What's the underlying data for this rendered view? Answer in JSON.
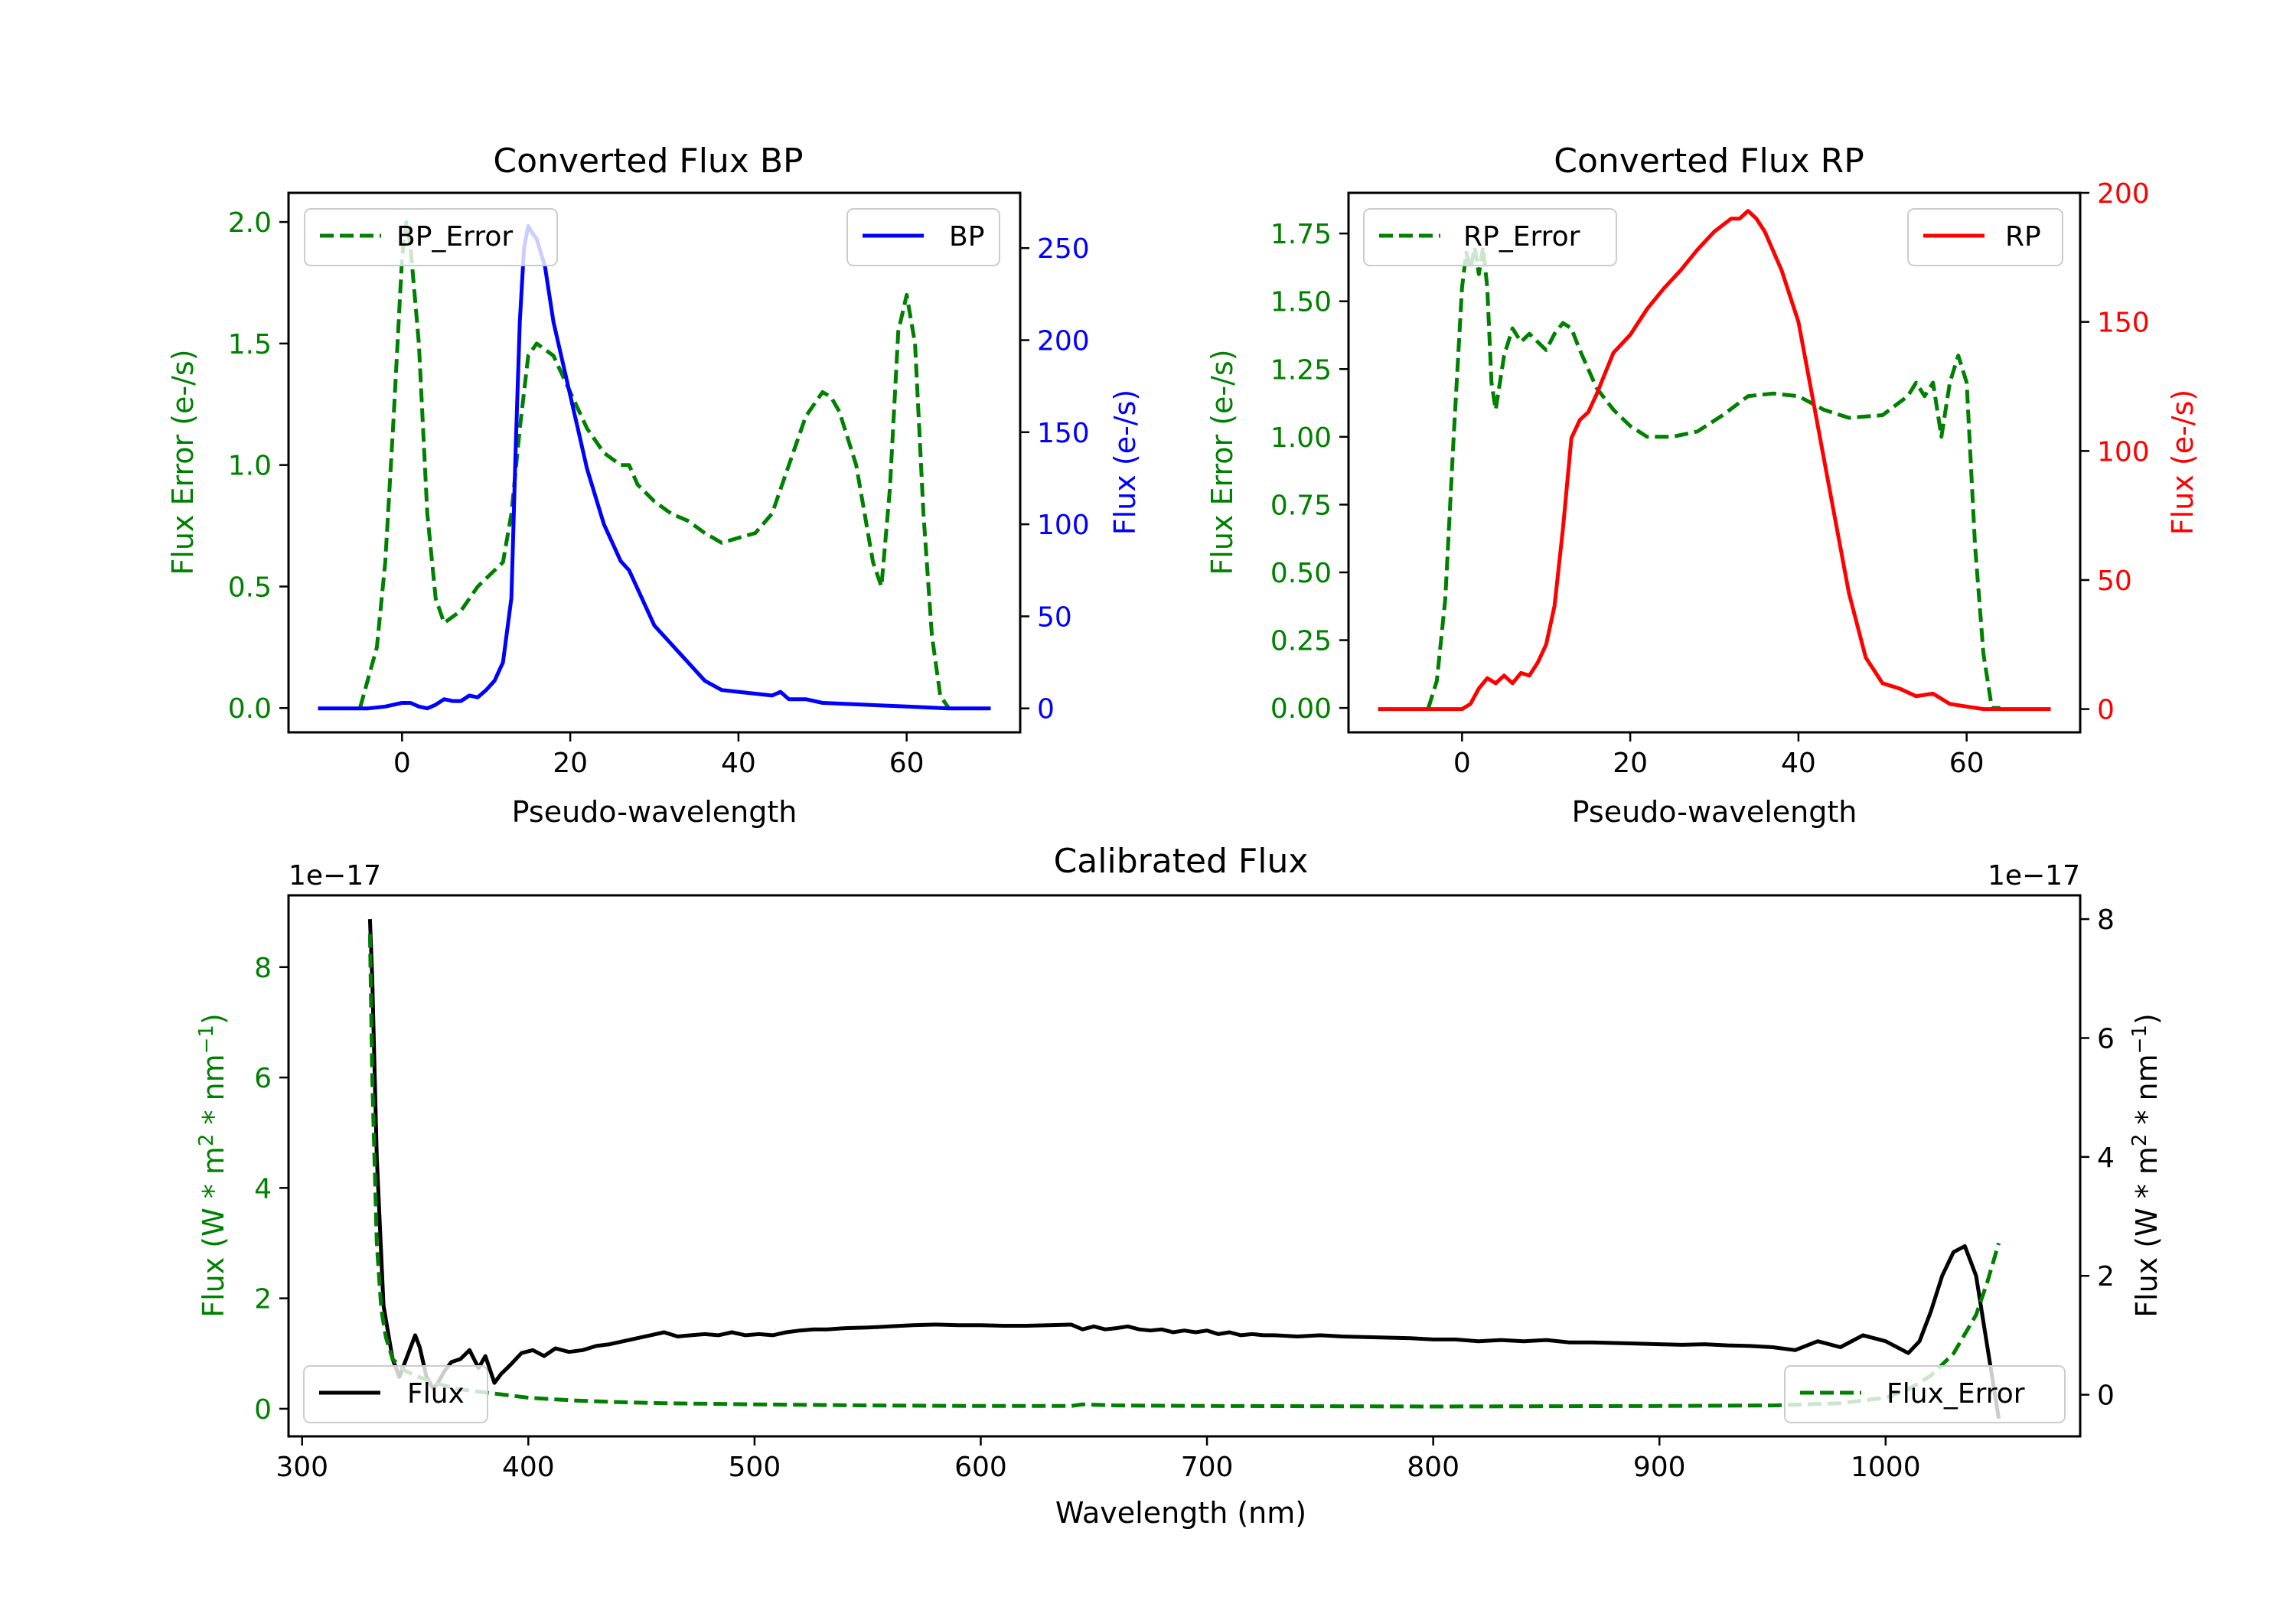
{
  "colors": {
    "bp": "#0000ff",
    "rp": "#ff0000",
    "error": "#008000",
    "flux": "#000000"
  },
  "chart_data": [
    {
      "id": "bp",
      "type": "line",
      "title": "Converted Flux BP",
      "xlabel": "Pseudo-wavelength",
      "ylabel_left": "Flux Error (e-/s)",
      "ylabel_right": "Flux (e-/s)",
      "xlim": [
        -13.5,
        73.5
      ],
      "ylim_left": [
        -0.1,
        2.12
      ],
      "ylim_right": [
        -13,
        280
      ],
      "xticks": [
        0,
        20,
        40,
        60
      ],
      "yticks_left": [
        "0.0",
        "0.5",
        "1.0",
        "1.5",
        "2.0"
      ],
      "yticks_right": [
        "0",
        "50",
        "100",
        "150",
        "200",
        "250"
      ],
      "legend_left": "BP_Error",
      "legend_right": "BP",
      "series": [
        {
          "name": "BP_Error",
          "axis": "left",
          "style": "dashed",
          "x": [
            -5,
            -3,
            -2,
            -1,
            0,
            0.5,
            1,
            2,
            3,
            4,
            5,
            7,
            9,
            12,
            13,
            14,
            15,
            16,
            18,
            20,
            22,
            24,
            26,
            27,
            28,
            30,
            32,
            34,
            36,
            38,
            40,
            42,
            44,
            46,
            48,
            50,
            51,
            52,
            54,
            56,
            57,
            58,
            59,
            60,
            61,
            62,
            63,
            64,
            65
          ],
          "values": [
            0.0,
            0.25,
            0.6,
            1.2,
            1.85,
            2.0,
            1.9,
            1.5,
            0.8,
            0.45,
            0.35,
            0.4,
            0.5,
            0.6,
            0.8,
            1.15,
            1.45,
            1.5,
            1.45,
            1.3,
            1.15,
            1.05,
            1.0,
            1.0,
            0.92,
            0.85,
            0.8,
            0.77,
            0.72,
            0.68,
            0.7,
            0.72,
            0.8,
            1.0,
            1.2,
            1.3,
            1.28,
            1.22,
            1.0,
            0.6,
            0.5,
            0.9,
            1.55,
            1.7,
            1.5,
            0.8,
            0.3,
            0.05,
            0.0
          ]
        },
        {
          "name": "BP",
          "axis": "right",
          "style": "solid",
          "x": [
            -10,
            -4,
            -2,
            0,
            1,
            2,
            3,
            4,
            5,
            6,
            7,
            8,
            9,
            10,
            11,
            12,
            13,
            13.5,
            14,
            14.5,
            15,
            15.5,
            16,
            17,
            18,
            20,
            22,
            24,
            26,
            27,
            28,
            30,
            32,
            34,
            36,
            38,
            40,
            42,
            44,
            45,
            46,
            48,
            50,
            55,
            60,
            65,
            70
          ],
          "values": [
            0,
            0,
            1,
            3,
            3,
            1,
            0,
            2,
            5,
            4,
            4,
            7,
            6,
            10,
            15,
            25,
            60,
            140,
            210,
            250,
            262,
            258,
            255,
            240,
            210,
            170,
            130,
            100,
            80,
            75,
            65,
            45,
            35,
            25,
            15,
            10,
            9,
            8,
            7,
            9,
            5,
            5,
            3,
            2,
            1,
            0,
            0
          ]
        }
      ]
    },
    {
      "id": "rp",
      "type": "line",
      "title": "Converted Flux RP",
      "xlabel": "Pseudo-wavelength",
      "ylabel_left": "Flux Error (e-/s)",
      "ylabel_right": "Flux (e-/s)",
      "xlim": [
        -13.5,
        73.5
      ],
      "ylim_left": [
        -0.09,
        1.9
      ],
      "ylim_right": [
        -9,
        200
      ],
      "xticks": [
        0,
        20,
        40,
        60
      ],
      "yticks_left": [
        "0.00",
        "0.25",
        "0.50",
        "0.75",
        "1.00",
        "1.25",
        "1.50",
        "1.75"
      ],
      "yticks_right": [
        "0",
        "50",
        "100",
        "150",
        "200"
      ],
      "legend_left": "RP_Error",
      "legend_right": "RP",
      "series": [
        {
          "name": "RP_Error",
          "axis": "left",
          "style": "dashed",
          "x": [
            -4,
            -3,
            -2,
            -1,
            0,
            0.5,
            1,
            1.5,
            2,
            2.5,
            3,
            3.5,
            4,
            5,
            6,
            7,
            8,
            9,
            10,
            11,
            12,
            13,
            14,
            15,
            16,
            18,
            20,
            22,
            25,
            28,
            31,
            34,
            37,
            40,
            43,
            46,
            50,
            53,
            54,
            55,
            56,
            57,
            58,
            59,
            60,
            61,
            62,
            63,
            64
          ],
          "values": [
            0.0,
            0.1,
            0.4,
            1.0,
            1.55,
            1.68,
            1.62,
            1.7,
            1.6,
            1.7,
            1.55,
            1.2,
            1.1,
            1.3,
            1.4,
            1.35,
            1.38,
            1.35,
            1.32,
            1.38,
            1.42,
            1.4,
            1.32,
            1.25,
            1.18,
            1.1,
            1.04,
            1.0,
            1.0,
            1.02,
            1.08,
            1.15,
            1.16,
            1.15,
            1.1,
            1.07,
            1.08,
            1.15,
            1.2,
            1.15,
            1.2,
            1.0,
            1.2,
            1.3,
            1.2,
            0.6,
            0.2,
            0.0,
            0.0
          ]
        },
        {
          "name": "RP",
          "axis": "right",
          "style": "solid",
          "x": [
            -10,
            -2,
            0,
            1,
            2,
            3,
            4,
            5,
            6,
            7,
            8,
            9,
            10,
            11,
            12,
            13,
            14,
            15,
            16,
            17,
            18,
            20,
            22,
            24,
            26,
            28,
            30,
            32,
            33,
            34,
            35,
            36,
            38,
            40,
            42,
            44,
            46,
            48,
            50,
            52,
            54,
            56,
            57,
            58,
            60,
            62,
            65,
            70
          ],
          "values": [
            0,
            0,
            0,
            2,
            8,
            12,
            10,
            13,
            10,
            14,
            13,
            18,
            25,
            40,
            70,
            105,
            112,
            115,
            122,
            130,
            138,
            145,
            155,
            163,
            170,
            178,
            185,
            190,
            190,
            193,
            190,
            185,
            170,
            150,
            115,
            80,
            45,
            20,
            10,
            8,
            5,
            6,
            4,
            2,
            1,
            0,
            0,
            0
          ]
        }
      ]
    },
    {
      "id": "calibrated",
      "type": "line",
      "title": "Calibrated Flux",
      "xlabel": "Wavelength (nm)",
      "ylabel_left": "Flux (W * m2 * nm-1)",
      "ylabel_right": "Flux (W * m2 * nm-1)",
      "offset_left": "1e−17",
      "offset_right": "1e−17",
      "xlim": [
        294,
        1086
      ],
      "ylim_left": [
        -0.5,
        9.3
      ],
      "ylim_right": [
        -0.7,
        8.4
      ],
      "xticks": [
        300,
        400,
        500,
        600,
        700,
        800,
        900,
        1000
      ],
      "yticks_left": [
        "0",
        "2",
        "4",
        "6",
        "8"
      ],
      "yticks_right": [
        "0",
        "2",
        "4",
        "6",
        "8"
      ],
      "legend_left": "Flux",
      "legend_right": "Flux_Error",
      "series": [
        {
          "name": "Flux",
          "axis": "right",
          "style": "solid",
          "x": [
            330,
            331,
            333,
            336,
            340,
            343,
            345,
            347,
            350,
            352,
            355,
            358,
            360,
            363,
            366,
            370,
            374,
            378,
            381,
            385,
            388,
            392,
            397,
            402,
            407,
            412,
            418,
            424,
            430,
            436,
            442,
            448,
            454,
            460,
            466,
            472,
            478,
            484,
            490,
            496,
            502,
            508,
            514,
            520,
            526,
            532,
            540,
            550,
            560,
            570,
            580,
            590,
            600,
            610,
            620,
            630,
            640,
            645,
            650,
            655,
            660,
            665,
            670,
            675,
            680,
            685,
            690,
            695,
            700,
            705,
            710,
            715,
            720,
            725,
            730,
            740,
            750,
            760,
            770,
            780,
            790,
            800,
            810,
            820,
            830,
            840,
            850,
            860,
            870,
            880,
            890,
            900,
            910,
            920,
            930,
            940,
            950,
            960,
            970,
            980,
            990,
            1000,
            1010,
            1015,
            1020,
            1025,
            1030,
            1035,
            1040,
            1045,
            1050
          ],
          "values": [
            8.0,
            7.0,
            4.0,
            1.5,
            0.6,
            0.3,
            0.5,
            0.7,
            1.0,
            0.8,
            0.3,
            0.1,
            0.2,
            0.4,
            0.55,
            0.6,
            0.75,
            0.45,
            0.65,
            0.2,
            0.35,
            0.5,
            0.7,
            0.75,
            0.65,
            0.78,
            0.72,
            0.75,
            0.82,
            0.85,
            0.9,
            0.95,
            1.0,
            1.05,
            0.98,
            1.0,
            1.02,
            1.0,
            1.05,
            1.0,
            1.02,
            1.0,
            1.05,
            1.08,
            1.1,
            1.1,
            1.12,
            1.13,
            1.15,
            1.17,
            1.18,
            1.17,
            1.17,
            1.16,
            1.16,
            1.17,
            1.18,
            1.1,
            1.15,
            1.1,
            1.12,
            1.15,
            1.1,
            1.08,
            1.1,
            1.05,
            1.08,
            1.05,
            1.08,
            1.02,
            1.05,
            1.0,
            1.02,
            1.0,
            1.0,
            0.98,
            1.0,
            0.98,
            0.97,
            0.96,
            0.95,
            0.93,
            0.93,
            0.9,
            0.92,
            0.9,
            0.92,
            0.88,
            0.88,
            0.87,
            0.86,
            0.85,
            0.84,
            0.85,
            0.83,
            0.82,
            0.8,
            0.75,
            0.9,
            0.8,
            1.0,
            0.9,
            0.7,
            0.9,
            1.4,
            2.0,
            2.4,
            2.5,
            2.0,
            0.8,
            -0.4
          ]
        },
        {
          "name": "Flux_Error",
          "axis": "left",
          "style": "dashed",
          "x": [
            330,
            331,
            333,
            335,
            337,
            340,
            345,
            350,
            360,
            370,
            380,
            390,
            400,
            420,
            440,
            460,
            500,
            550,
            600,
            640,
            645,
            660,
            700,
            800,
            900,
            950,
            980,
            1000,
            1010,
            1020,
            1030,
            1040,
            1045,
            1050
          ],
          "values": [
            8.6,
            6.0,
            3.0,
            1.8,
            1.3,
            0.9,
            0.7,
            0.6,
            0.45,
            0.35,
            0.3,
            0.25,
            0.2,
            0.15,
            0.12,
            0.1,
            0.08,
            0.06,
            0.05,
            0.05,
            0.08,
            0.06,
            0.05,
            0.04,
            0.05,
            0.06,
            0.1,
            0.2,
            0.35,
            0.6,
            1.0,
            1.7,
            2.3,
            3.0
          ]
        }
      ]
    }
  ]
}
